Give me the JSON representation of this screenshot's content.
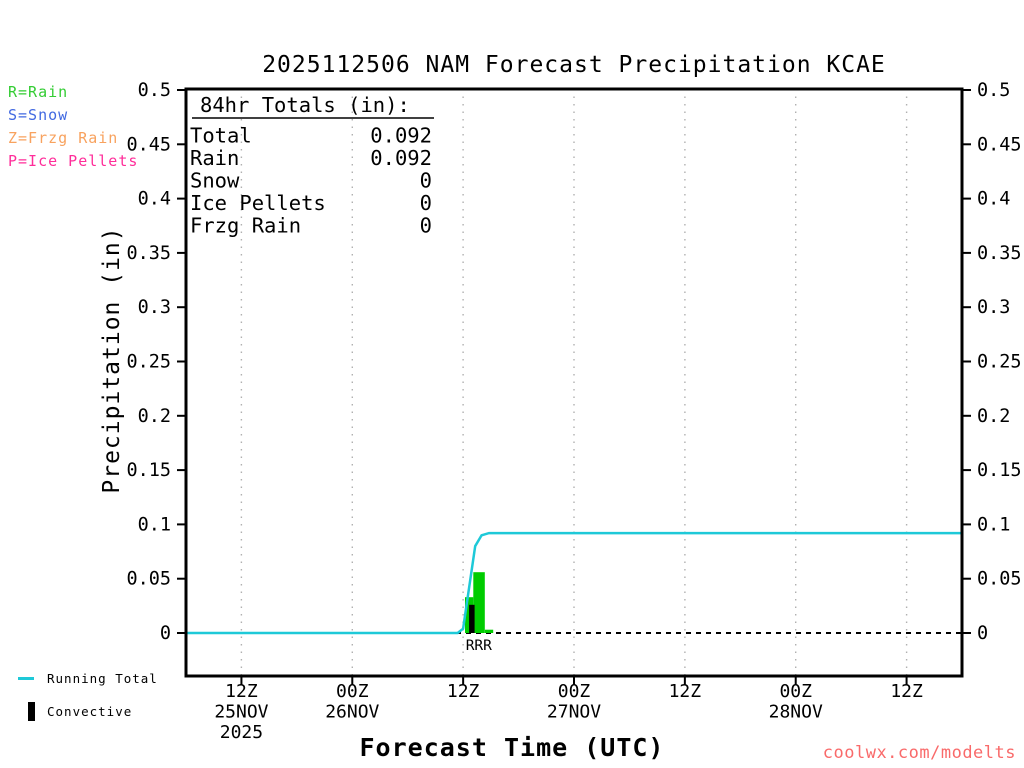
{
  "title": "2025112506 NAM Forecast Precipitation KCAE",
  "watermark": {
    "text": "coolwx.com/modelts",
    "color": "#f96a6a"
  },
  "colors": {
    "rain": "#00cc00",
    "rain_text": "#33cc33",
    "snow": "#4169e1",
    "frzg_rain": "#f8a25e",
    "ice_pellets": "#ff2d9a",
    "convective": "#000000",
    "running_total": "#1ec9d8",
    "grid": "#b0b0b0",
    "axis": "#000000"
  },
  "legend_types": [
    {
      "label": "R=Rain",
      "color_key": "rain_text"
    },
    {
      "label": "S=Snow",
      "color_key": "snow"
    },
    {
      "label": "Z=Frzg Rain",
      "color_key": "frzg_rain"
    },
    {
      "label": "P=Ice Pellets",
      "color_key": "ice_pellets"
    }
  ],
  "legend_series": [
    {
      "label": "Running Total",
      "swatch": "line",
      "color_key": "running_total"
    },
    {
      "label": "Convective",
      "swatch": "bar",
      "color_key": "convective"
    }
  ],
  "chart_data": {
    "type": "bar+line",
    "title": "2025112506 NAM Forecast Precipitation KCAE",
    "xlabel": "Forecast Time (UTC)",
    "ylabel": "Precipitation (in)",
    "grid": "vertical-dotted",
    "zero_line": "dashed-black",
    "x_range_hours": [
      0,
      84
    ],
    "ylim": [
      -0.04,
      0.5
    ],
    "y_ticks": [
      0,
      0.05,
      0.1,
      0.15,
      0.2,
      0.25,
      0.3,
      0.35,
      0.4,
      0.45,
      0.5
    ],
    "x_ticks": [
      {
        "t": 6,
        "lines": [
          "12Z",
          "25NOV",
          "2025"
        ]
      },
      {
        "t": 18,
        "lines": [
          "00Z",
          "26NOV"
        ]
      },
      {
        "t": 30,
        "lines": [
          "12Z"
        ]
      },
      {
        "t": 42,
        "lines": [
          "00Z",
          "27NOV"
        ]
      },
      {
        "t": 54,
        "lines": [
          "12Z"
        ]
      },
      {
        "t": 66,
        "lines": [
          "00Z",
          "28NOV"
        ]
      },
      {
        "t": 78,
        "lines": [
          "12Z"
        ]
      }
    ],
    "running_total": {
      "name": "Running Total",
      "color_key": "running_total",
      "points": [
        [
          0,
          0
        ],
        [
          29.4,
          0
        ],
        [
          30.0,
          0.004
        ],
        [
          31.3,
          0.08
        ],
        [
          32.0,
          0.09
        ],
        [
          32.8,
          0.092
        ],
        [
          84,
          0.092
        ]
      ]
    },
    "precip_bars": [
      {
        "t0": 30.2,
        "t1": 31.1,
        "value": 0.033,
        "type": "rain"
      },
      {
        "t0": 31.1,
        "t1": 32.35,
        "value": 0.056,
        "type": "rain"
      },
      {
        "t0": 32.35,
        "t1": 33.25,
        "value": 0.003,
        "type": "rain"
      }
    ],
    "convective_bars": [
      {
        "t0": 30.65,
        "t1": 31.25,
        "value": 0.026
      }
    ],
    "bar_type_labels": [
      {
        "t": 31.7,
        "text": "RRR",
        "color_key": "rain_text"
      }
    ],
    "totals_box": {
      "header": "84hr Totals (in):",
      "rows": [
        {
          "label": "Total",
          "value": "0.092"
        },
        {
          "label": "Rain",
          "value": "0.092"
        },
        {
          "label": "Snow",
          "value": "0"
        },
        {
          "label": "Ice Pellets",
          "value": "0"
        },
        {
          "label": "Frzg Rain",
          "value": "0"
        }
      ]
    }
  }
}
